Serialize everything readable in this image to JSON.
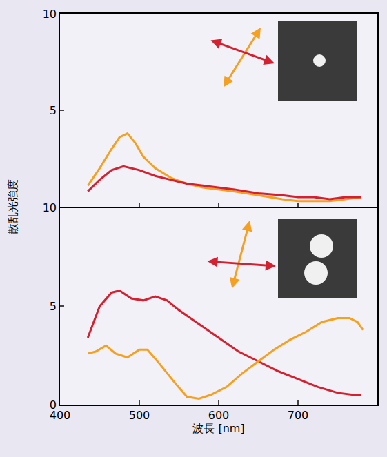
{
  "chart_data": {
    "type": "line",
    "x_label": "波長 [nm]",
    "y_label": "散乱光強度",
    "panels": [
      {
        "type": "line",
        "xlim": [
          400,
          800
        ],
        "xticks": [
          400,
          500,
          600,
          700,
          800
        ],
        "ylim": [
          0,
          10
        ],
        "yticks": [
          5,
          10
        ],
        "tick_labels": "y",
        "series": [
          {
            "color": "#f5a020",
            "x": [
              435,
              450,
              465,
              475,
              485,
              495,
              505,
              520,
              540,
              560,
              580,
              600,
              620,
              650,
              680,
              700,
              720,
              740,
              760,
              780
            ],
            "values": [
              1.1,
              2.0,
              3.0,
              3.6,
              3.8,
              3.3,
              2.6,
              2.0,
              1.5,
              1.2,
              1.0,
              0.9,
              0.8,
              0.6,
              0.4,
              0.3,
              0.3,
              0.3,
              0.4,
              0.5
            ]
          },
          {
            "color": "#d42030",
            "x": [
              435,
              450,
              465,
              480,
              500,
              520,
              540,
              560,
              580,
              600,
              620,
              650,
              680,
              700,
              720,
              740,
              760,
              780
            ],
            "values": [
              0.8,
              1.4,
              1.9,
              2.1,
              1.9,
              1.6,
              1.4,
              1.2,
              1.1,
              1.0,
              0.9,
              0.7,
              0.6,
              0.5,
              0.5,
              0.4,
              0.5,
              0.5
            ]
          }
        ]
      },
      {
        "type": "line",
        "xlim": [
          400,
          800
        ],
        "xticks": [
          400,
          500,
          600,
          700,
          800
        ],
        "ylim": [
          0,
          10
        ],
        "yticks": [
          0,
          5,
          10
        ],
        "series": [
          {
            "color": "#d42030",
            "x": [
              435,
              450,
              465,
              475,
              490,
              505,
              520,
              535,
              550,
              575,
              600,
              625,
              650,
              675,
              700,
              725,
              750,
              770,
              780
            ],
            "values": [
              3.4,
              5.0,
              5.7,
              5.8,
              5.4,
              5.3,
              5.5,
              5.3,
              4.8,
              4.1,
              3.4,
              2.7,
              2.2,
              1.7,
              1.3,
              0.9,
              0.6,
              0.5,
              0.5
            ]
          },
          {
            "color": "#f5a020",
            "x": [
              435,
              445,
              458,
              470,
              485,
              500,
              510,
              525,
              545,
              560,
              575,
              590,
              610,
              630,
              650,
              670,
              690,
              710,
              730,
              750,
              765,
              775,
              782
            ],
            "values": [
              2.6,
              2.7,
              3.0,
              2.6,
              2.4,
              2.8,
              2.8,
              2.1,
              1.1,
              0.4,
              0.3,
              0.5,
              0.9,
              1.6,
              2.2,
              2.8,
              3.3,
              3.7,
              4.2,
              4.4,
              4.4,
              4.2,
              3.8
            ]
          }
        ]
      }
    ]
  }
}
